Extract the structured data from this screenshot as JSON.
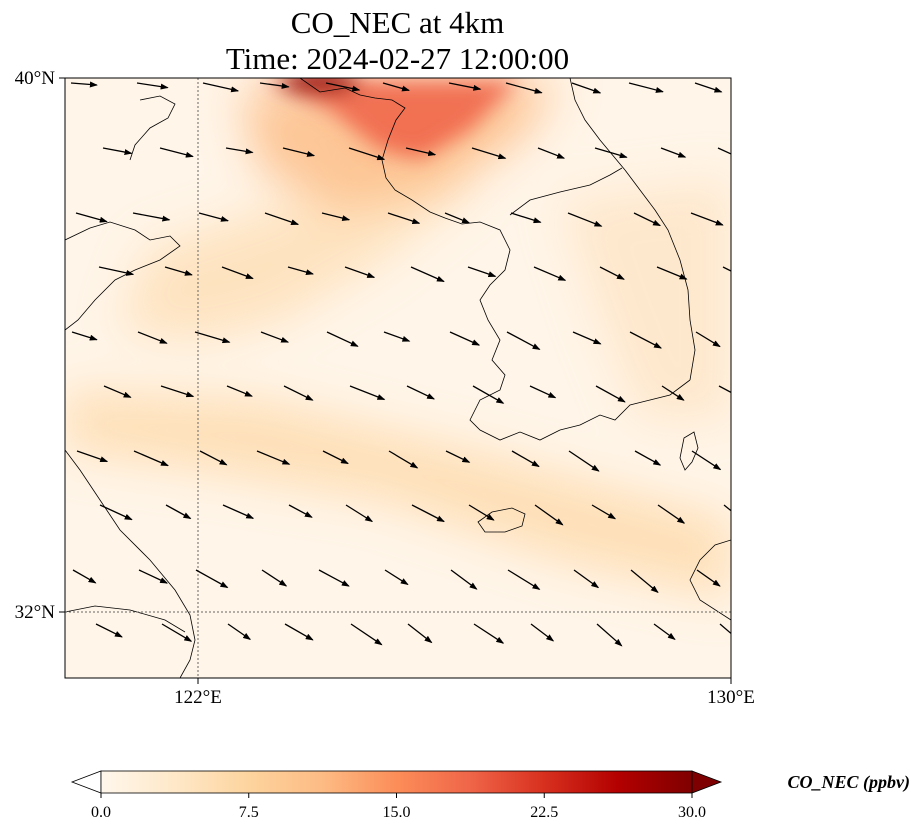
{
  "title": {
    "line1": "CO_NEC at 4km",
    "line2": "Time: 2024-02-27 12:00:00"
  },
  "map": {
    "lon_range": [
      118,
      130
    ],
    "lat_range": [
      30.8,
      40
    ],
    "gridlines": {
      "lon": [
        122
      ],
      "lat": [
        32
      ],
      "style": "dotted"
    },
    "lon_ticks": [
      {
        "value": 122,
        "label": "122°E"
      },
      {
        "value": 130,
        "label": "130°E"
      }
    ],
    "lat_ticks": [
      {
        "value": 40,
        "label": "40°N"
      },
      {
        "value": 32,
        "label": "32°N"
      }
    ],
    "concentration_plumes": [
      {
        "name": "bohai-plume",
        "level": 26
      },
      {
        "name": "bohai-outflow",
        "level": 12
      },
      {
        "name": "yellow-sea-band",
        "level": 8
      },
      {
        "name": "east-china-sea-band",
        "level": 9
      },
      {
        "name": "korea-east",
        "level": 5
      }
    ],
    "wind_vectors_shown": true
  },
  "colorbar": {
    "label": "CO_NEC (ppbv)",
    "min": 0.0,
    "max": 30.0,
    "extend": "both",
    "cmap": "OrRd",
    "colors": [
      "#fff7ec",
      "#fee8c8",
      "#fdd49e",
      "#fdbb84",
      "#fc8d59",
      "#ef6548",
      "#d7301f",
      "#b30000",
      "#7f0000"
    ],
    "ticks": [
      "0.0",
      "7.5",
      "15.0",
      "22.5",
      "30.0"
    ]
  }
}
